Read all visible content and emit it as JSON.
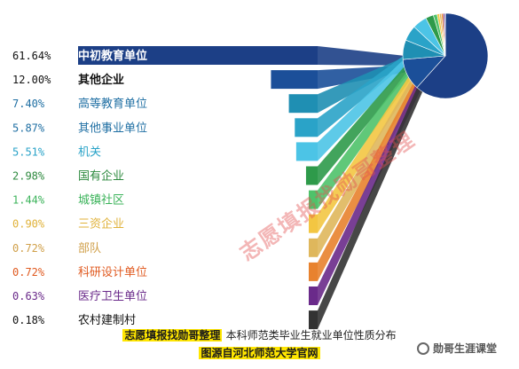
{
  "chart_data": {
    "type": "bar",
    "categories": [
      "中初教育单位",
      "其他企业",
      "高等教育单位",
      "其他事业单位",
      "机关",
      "国有企业",
      "城镇社区",
      "三资企业",
      "部队",
      "科研设计单位",
      "医疗卫生单位",
      "农村建制村"
    ],
    "values": [
      61.64,
      12.0,
      7.4,
      5.87,
      5.51,
      2.98,
      1.44,
      0.9,
      0.72,
      0.72,
      0.63,
      0.18
    ],
    "value_labels": [
      "61.64%",
      "12.00%",
      "7.40%",
      "5.87%",
      "5.51%",
      "2.98%",
      "1.44%",
      "0.90%",
      "0.72%",
      "0.72%",
      "0.63%",
      "0.18%"
    ],
    "colors": [
      "#1c3f86",
      "#1b4f99",
      "#1f8fb3",
      "#2aa3c8",
      "#4cc4e6",
      "#2e9a4a",
      "#4fc26a",
      "#f3c642",
      "#dfb75c",
      "#e8822e",
      "#6a2a8a",
      "#333333"
    ],
    "label_colors": [
      "#ffffff",
      "#111111",
      "#1f6fa3",
      "#1f6fa3",
      "#2aa3c8",
      "#2e8a3f",
      "#3bb35a",
      "#e0b23a",
      "#d0a04a",
      "#e05a20",
      "#6a2a8a",
      "#111111"
    ],
    "pie": true,
    "legend": "none"
  },
  "caption": {
    "highlight": "志愿填报找勋哥整理",
    "text": "本科师范类毕业生就业单位性质分布",
    "source": "图源自河北师范大学官网"
  },
  "watermark": "志愿填报找勋哥整理",
  "brand": "勋哥生涯课堂"
}
